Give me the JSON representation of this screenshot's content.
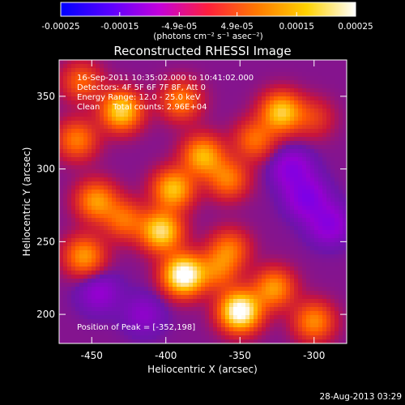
{
  "chart_data": {
    "type": "heatmap",
    "title": "Reconstructed RHESSI Image",
    "xlabel": "Heliocentric X (arcsec)",
    "ylabel": "Heliocentric Y (arcsec)",
    "xlim": [
      -472,
      -278
    ],
    "ylim": [
      180,
      375
    ],
    "xticks": [
      -450,
      -400,
      -350,
      -300
    ],
    "yticks": [
      200,
      250,
      300,
      350
    ],
    "colorbar": {
      "ticks": [
        -0.00025,
        -0.00015,
        -4.9e-05,
        4.9e-05,
        0.00015,
        0.00025
      ],
      "tick_labels": [
        "-0.00025",
        "-0.00015",
        "-4.9e-05",
        "4.9e-05",
        "0.00015",
        "0.00025"
      ],
      "range": [
        -0.00025,
        0.00025
      ],
      "units": "(photons cm⁻² s⁻¹ asec⁻²)",
      "colormap": [
        "#0000ff",
        "#5a00ff",
        "#c300dc",
        "#ff1f3c",
        "#ff7a00",
        "#ffd200",
        "#ffffff"
      ]
    },
    "annotations": [
      "16-Sep-2011 10:35:02.000 to 10:41:02.000",
      "Detectors: 4F 5F 6F 7F 8F, Att 0",
      "Energy Range: 12.0 - 25.0 keV",
      "Clean     Total counts: 2.96E+04"
    ],
    "peak_label": "Position of Peak = [-352,198]",
    "peak": [
      -352,
      198
    ],
    "sources": [
      {
        "x": -388,
        "y": 227,
        "value": 0.00025
      },
      {
        "x": -350,
        "y": 202,
        "value": 0.00025
      },
      {
        "x": -403,
        "y": 257,
        "value": 0.00019
      },
      {
        "x": -430,
        "y": 340,
        "value": 0.00018
      },
      {
        "x": -395,
        "y": 286,
        "value": 0.00016
      },
      {
        "x": -322,
        "y": 339,
        "value": 0.00017
      },
      {
        "x": -375,
        "y": 309,
        "value": 0.00015
      },
      {
        "x": -447,
        "y": 278,
        "value": 0.00013
      },
      {
        "x": -455,
        "y": 240,
        "value": 0.00013
      },
      {
        "x": -327,
        "y": 218,
        "value": 0.00013
      },
      {
        "x": -390,
        "y": 347,
        "value": 0.00011
      },
      {
        "x": -358,
        "y": 293,
        "value": 0.00011
      },
      {
        "x": -428,
        "y": 265,
        "value": 0.0001
      },
      {
        "x": -460,
        "y": 320,
        "value": 0.00011
      },
      {
        "x": -357,
        "y": 245,
        "value": 0.0001
      },
      {
        "x": -300,
        "y": 195,
        "value": 0.00012
      },
      {
        "x": -340,
        "y": 320,
        "value": 0.0001
      },
      {
        "x": -365,
        "y": 230,
        "value": 9e-05
      },
      {
        "x": -457,
        "y": 360,
        "value": 9e-05
      },
      {
        "x": -300,
        "y": 335,
        "value": 6e-05
      },
      {
        "x": -305,
        "y": 280,
        "value": -9e-05
      },
      {
        "x": -315,
        "y": 300,
        "value": -8e-05
      },
      {
        "x": -290,
        "y": 262,
        "value": -8e-05
      },
      {
        "x": -445,
        "y": 215,
        "value": -6e-05
      },
      {
        "x": -415,
        "y": 200,
        "value": -5e-05
      }
    ]
  },
  "footer_timestamp": "28-Aug-2013 03:29"
}
